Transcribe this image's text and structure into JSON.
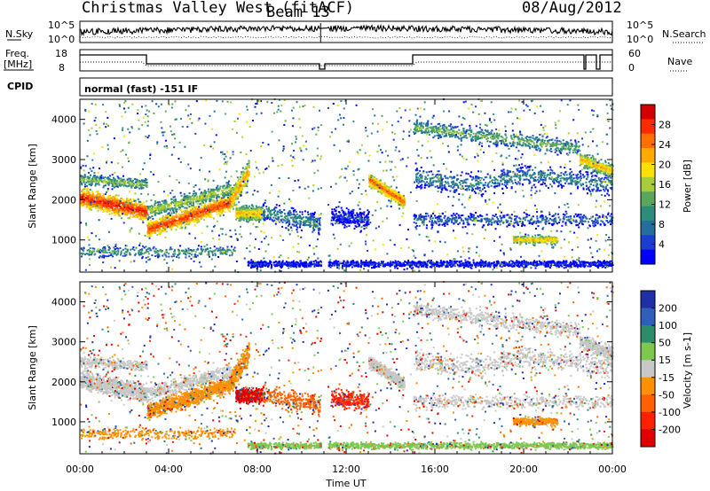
{
  "header": {
    "title": "Christmas Valley West (fitACF)",
    "beam": "Beam 13",
    "date": "08/Aug/2012"
  },
  "strips": {
    "nsky_label": "N.Sky",
    "nsky_ticks": [
      "10^5",
      "10^0"
    ],
    "nsearch_label": "N.Search",
    "nsearch_ticks": [
      "10^5",
      "10^0"
    ],
    "freq_label_1": "Freq.",
    "freq_label_2": "[MHz]",
    "freq_ticks": [
      "18",
      "8"
    ],
    "nave_label": "Nave",
    "nave_ticks": [
      "60",
      "0"
    ],
    "cpid_label": "CPID",
    "cpid_value": "normal (fast) -151 IF"
  },
  "chart_data": [
    {
      "type": "heatmap",
      "name": "power",
      "ylabel": "Slant Range [km]",
      "yticks": [
        1000,
        2000,
        3000,
        4000
      ],
      "ylim": [
        200,
        4500
      ],
      "xlim": [
        0,
        24
      ],
      "colorbar": {
        "label": "Power [dB]",
        "ticks": [
          "28",
          "24",
          "20",
          "16",
          "12",
          "8",
          "4"
        ],
        "colors": [
          "#d20000",
          "#ff2a00",
          "#ff7000",
          "#ffaa00",
          "#ffe000",
          "#a8cc3a",
          "#5ca65c",
          "#2e8c7a",
          "#236e9c",
          "#1b3ecf",
          "#0000ff"
        ]
      }
    },
    {
      "type": "heatmap",
      "name": "velocity",
      "ylabel": "Slant Range [km]",
      "yticks": [
        1000,
        2000,
        3000,
        4000
      ],
      "ylim": [
        200,
        4500
      ],
      "xlim": [
        0,
        24
      ],
      "xlabel": "Time UT",
      "xticks": [
        "00:00",
        "04:00",
        "08:00",
        "12:00",
        "16:00",
        "20:00",
        "00:00"
      ],
      "colorbar": {
        "label": "Velocity [m s-1]",
        "ticks": [
          "200",
          "100",
          "50",
          "15",
          "-15",
          "-50",
          "-100",
          "-200"
        ],
        "colors": [
          "#1f2fa8",
          "#2f5fb8",
          "#2e8c6a",
          "#7ec850",
          "#c8c8c8",
          "#ff9000",
          "#ff6000",
          "#ff2000",
          "#e00000"
        ]
      }
    }
  ]
}
